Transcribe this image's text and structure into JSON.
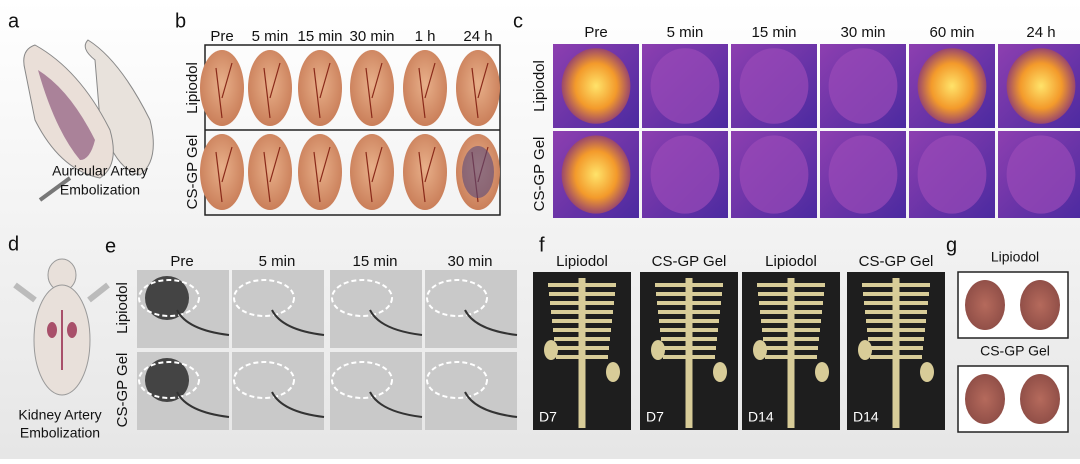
{
  "panels": {
    "a": {
      "label": "a",
      "caption": [
        "Auricular Artery",
        "Embolization"
      ]
    },
    "b": {
      "label": "b",
      "columns": [
        "Pre",
        "5 min",
        "15 min",
        "30 min",
        "1 h",
        "24 h"
      ],
      "rows": [
        "Lipiodol",
        "CS-GP Gel"
      ]
    },
    "c": {
      "label": "c",
      "columns": [
        "Pre",
        "5 min",
        "15 min",
        "30 min",
        "60 min",
        "24 h"
      ],
      "rows": [
        "Lipiodol",
        "CS-GP Gel"
      ]
    },
    "d": {
      "label": "d",
      "caption": [
        "Kidney Artery",
        "Embolization"
      ]
    },
    "e": {
      "label": "e",
      "columns": [
        "Pre",
        "5 min",
        "15 min",
        "30 min"
      ],
      "rows": [
        "Lipiodol",
        "CS-GP Gel"
      ]
    },
    "f": {
      "label": "f",
      "columns": [
        "Lipiodol",
        "CS-GP Gel",
        "Lipiodol",
        "CS-GP Gel"
      ],
      "days": [
        "D7",
        "D7",
        "D14",
        "D14"
      ]
    },
    "g": {
      "label": "g",
      "labels": [
        "Lipiodol",
        "CS-GP Gel"
      ]
    }
  }
}
